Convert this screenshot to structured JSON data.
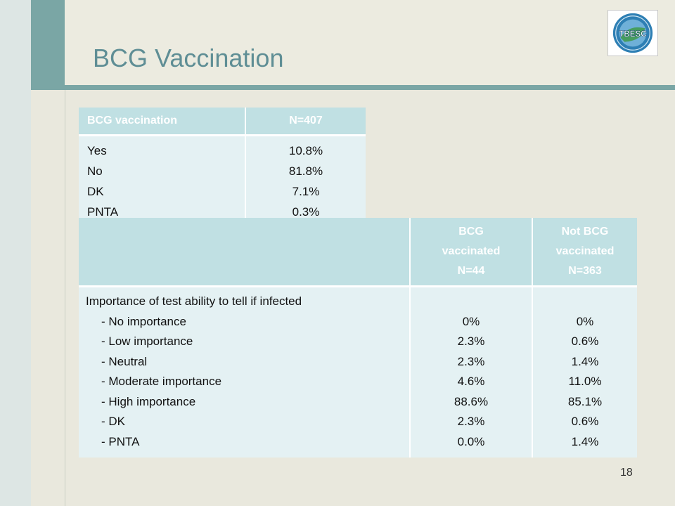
{
  "slide": {
    "title": "BCG Vaccination",
    "page_number": "18",
    "logo_text": "TBESC",
    "colors": {
      "title": "#5f8e95",
      "accent": "#7aa6a5",
      "table_header": "#c0e0e3",
      "table_body": "#e4f1f3",
      "background": "#e9e8dd"
    }
  },
  "table1": {
    "headers": [
      "BCG vaccination",
      "N=407"
    ],
    "labels": [
      "Yes",
      "No",
      "DK",
      "PNTA"
    ],
    "values": [
      "10.8%",
      "81.8%",
      "7.1%",
      "0.3%"
    ]
  },
  "table2": {
    "headers": {
      "col1": "",
      "col2": [
        "BCG",
        "vaccinated",
        "N=44"
      ],
      "col3": [
        "Not BCG",
        "vaccinated",
        "N=363"
      ]
    },
    "heading": "Importance of test ability to tell if infected",
    "items": [
      "- No importance",
      "- Low importance",
      "- Neutral",
      "- Moderate importance",
      "- High importance",
      "- DK",
      "- PNTA"
    ],
    "bcg_vaccinated": [
      "0%",
      "2.3%",
      "2.3%",
      "4.6%",
      "88.6%",
      "2.3%",
      "0.0%"
    ],
    "not_bcg_vaccinated": [
      "0%",
      "0.6%",
      "1.4%",
      "11.0%",
      "85.1%",
      "0.6%",
      "1.4%"
    ]
  }
}
